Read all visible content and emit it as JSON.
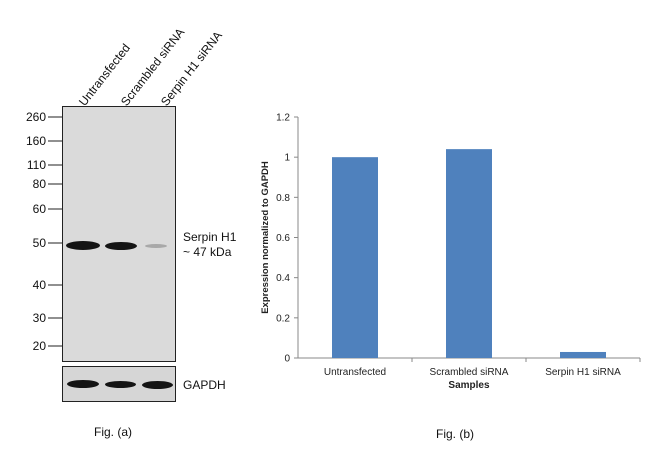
{
  "figure_a": {
    "lanes": [
      "Untransfected",
      "Scrambled siRNA",
      "Serpin H1 siRNA"
    ],
    "mw_markers": [
      "260",
      "160",
      "110",
      "80",
      "60",
      "50",
      "40",
      "30",
      "20"
    ],
    "target_label_1": "Serpin H1",
    "target_label_2": "~ 47 kDa",
    "loading_control_label": "GAPDH",
    "caption": "Fig. (a)"
  },
  "figure_b": {
    "caption": "Fig. (b)"
  },
  "chart_data": {
    "type": "bar",
    "title": "",
    "categories": [
      "Untransfected",
      "Scrambled siRNA",
      "Serpin H1 siRNA"
    ],
    "values": [
      1.0,
      1.04,
      0.03
    ],
    "xlabel": "Samples",
    "ylabel": "Expression  normalized to GAPDH",
    "ylim": [
      0,
      1.2
    ],
    "yticks": [
      "0",
      "0.2",
      "0.4",
      "0.6",
      "0.8",
      "1",
      "1.2"
    ],
    "grid": false,
    "bar_color": "#4f81bd"
  }
}
